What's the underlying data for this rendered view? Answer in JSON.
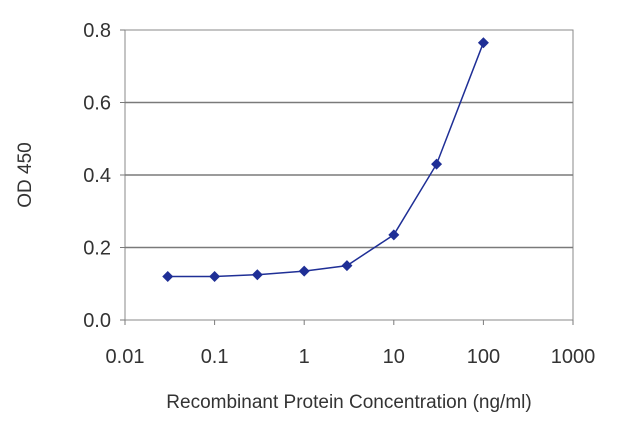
{
  "chart_data": {
    "type": "line",
    "title": "",
    "xlabel": "Recombinant Protein Concentration (ng/ml)",
    "ylabel": "OD 450",
    "x_scale": "log",
    "xlim": [
      0.01,
      1000
    ],
    "ylim": [
      0.0,
      0.8
    ],
    "x_ticks": [
      0.01,
      0.1,
      1,
      10,
      100,
      1000
    ],
    "x_tick_labels": [
      "0.01",
      "0.1",
      "1",
      "10",
      "100",
      "1000"
    ],
    "y_ticks": [
      0.0,
      0.2,
      0.4,
      0.6,
      0.8
    ],
    "y_tick_labels": [
      "0.0",
      "0.2",
      "0.4",
      "0.6",
      "0.8"
    ],
    "grid": "horizontal",
    "legend": "none",
    "series": [
      {
        "color": "#1f2f96",
        "marker": "diamond",
        "points": [
          {
            "x": 0.03,
            "y": 0.12
          },
          {
            "x": 0.1,
            "y": 0.12
          },
          {
            "x": 0.3,
            "y": 0.125
          },
          {
            "x": 1,
            "y": 0.135
          },
          {
            "x": 3,
            "y": 0.15
          },
          {
            "x": 10,
            "y": 0.235
          },
          {
            "x": 30,
            "y": 0.43
          },
          {
            "x": 100,
            "y": 0.765
          }
        ]
      }
    ]
  }
}
